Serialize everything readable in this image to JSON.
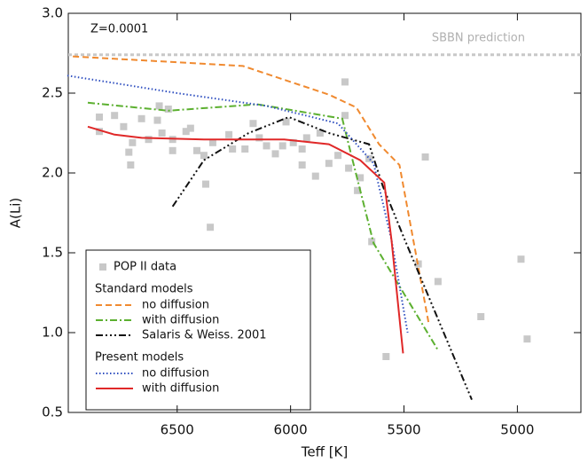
{
  "chart_data": {
    "type": "line",
    "annotation": "Z=0.0001",
    "x_label": "Teff [K]",
    "y_label": "A(Li)",
    "xlim": [
      6980,
      4720
    ],
    "ylim": [
      0.5,
      3.0
    ],
    "xticks": [
      6500,
      6000,
      5500,
      5000
    ],
    "yticks": [
      0.5,
      {
        "value": 1,
        "label": "1.0"
      },
      1.5,
      {
        "value": 2,
        "label": "2.0"
      },
      2.5,
      {
        "value": 3,
        "label": "3.0"
      }
    ],
    "reference_line": {
      "label": "SBBN prediction",
      "value": 2.74,
      "color": "#c8c8c8"
    },
    "scatter": {
      "name": "POP II data",
      "color": "#c8c8c8",
      "x": [
        6843,
        6843,
        6776,
        6736,
        6697,
        6657,
        6713,
        6705,
        6626,
        6587,
        6579,
        6539,
        6567,
        6520,
        6520,
        6461,
        6441,
        6413,
        6382,
        6374,
        6354,
        6343,
        6272,
        6256,
        6201,
        6165,
        6138,
        6106,
        6067,
        6035,
        6020,
        5988,
        5949,
        5949,
        5929,
        5890,
        5870,
        5831,
        5791,
        5760,
        5760,
        5744,
        5693,
        5705,
        5654,
        5642,
        5579,
        5437,
        5406,
        5350,
        5161,
        4984,
        4957
      ],
      "values": [
        2.35,
        2.26,
        2.36,
        2.29,
        2.19,
        2.34,
        2.13,
        2.05,
        2.21,
        2.33,
        2.42,
        2.4,
        2.25,
        2.21,
        2.14,
        2.26,
        2.28,
        2.14,
        2.11,
        1.93,
        1.66,
        2.19,
        2.24,
        2.15,
        2.15,
        2.31,
        2.22,
        2.17,
        2.12,
        2.17,
        2.32,
        2.19,
        2.15,
        2.05,
        2.22,
        1.98,
        2.25,
        2.06,
        2.11,
        2.57,
        2.36,
        2.03,
        1.97,
        1.89,
        2.09,
        1.57,
        0.85,
        1.43,
        2.1,
        1.32,
        1.1,
        1.46,
        0.96
      ]
    },
    "series_groups": [
      {
        "name": "Standard models",
        "series": [
          {
            "name": "no diffusion",
            "color": "#f08a30",
            "dash": "7,4",
            "x": [
              6960,
              6210,
              5830,
              5710,
              5610,
              5520,
              5390
            ],
            "values": [
              2.73,
              2.67,
              2.49,
              2.41,
              2.18,
              2.05,
              1.05
            ]
          },
          {
            "name": "with diffusion",
            "color": "#5cb030",
            "dash": "8,3,2,3",
            "x": [
              6894,
              6539,
              6146,
              5772,
              5732,
              5634,
              5350
            ],
            "values": [
              2.44,
              2.39,
              2.43,
              2.34,
              2.11,
              1.56,
              0.89
            ]
          },
          {
            "name": "Salaris & Weiss. 2001",
            "color": "#111111",
            "dash": "8,3,2,3,2,3,2,3",
            "x": [
              6520,
              6382,
              6185,
              6008,
              5831,
              5654,
              5594,
              5496,
              5201
            ],
            "values": [
              1.79,
              2.08,
              2.25,
              2.35,
              2.25,
              2.18,
              1.92,
              1.58,
              0.58
            ]
          }
        ]
      },
      {
        "name": "Present models",
        "series": [
          {
            "name": "no diffusion",
            "color": "#3050c0",
            "dash": "1.5,2.5",
            "x": [
              6984,
              6500,
              6106,
              5791,
              5634,
              5555,
              5484
            ],
            "values": [
              2.61,
              2.5,
              2.42,
              2.31,
              2.06,
              1.58,
              1.0
            ]
          },
          {
            "name": "with diffusion",
            "color": "#e02828",
            "dash": "none",
            "x": [
              6894,
              6776,
              6657,
              6382,
              6028,
              5831,
              5693,
              5587,
              5555,
              5504
            ],
            "values": [
              2.29,
              2.24,
              2.22,
              2.21,
              2.21,
              2.18,
              2.08,
              1.94,
              1.58,
              0.87
            ]
          }
        ]
      }
    ]
  }
}
